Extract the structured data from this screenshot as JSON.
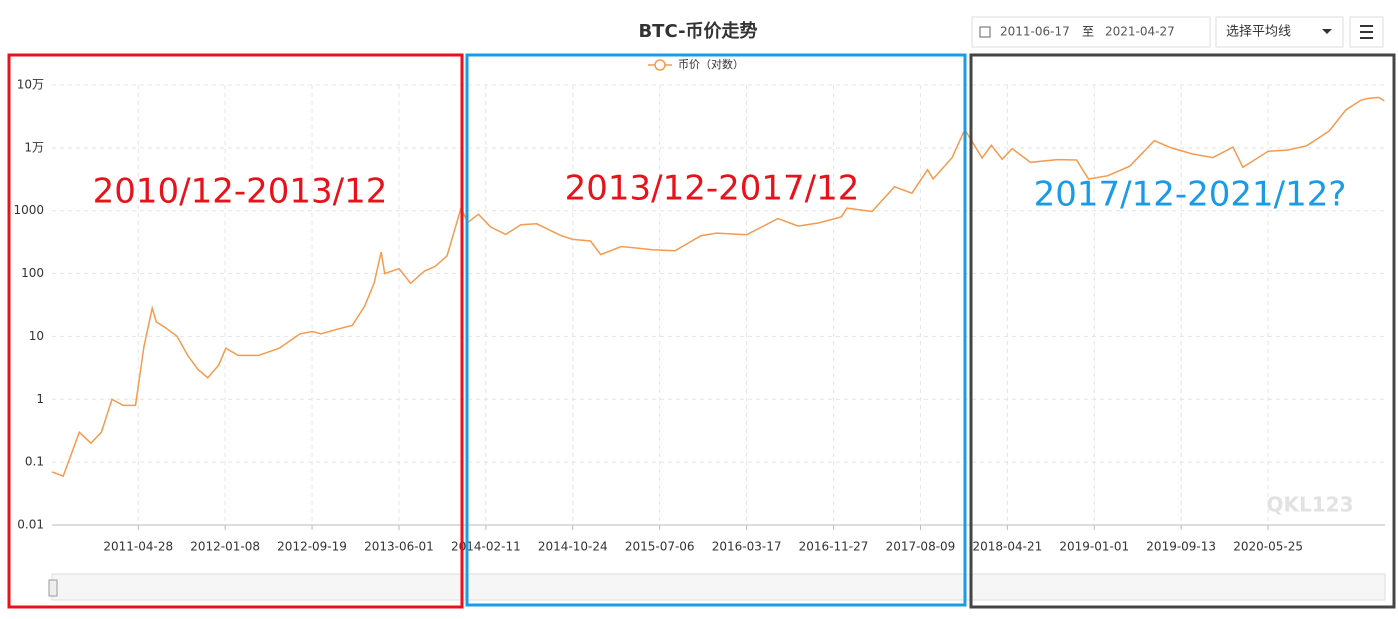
{
  "toolbar": {
    "start_date": "2011-06-17",
    "to": "至",
    "end_date": "2021-04-27",
    "ma_select": "选择平均线"
  },
  "chart_data": {
    "type": "line",
    "title": "BTC-币价走势",
    "log_scale": true,
    "grid": true,
    "legend": "top",
    "watermark": "QKL123",
    "x": [
      "2010-08-18",
      "2010-09-20",
      "2010-10-05",
      "2010-11-06",
      "2010-12-10",
      "2011-01-10",
      "2011-02-10",
      "2011-03-15",
      "2011-04-20",
      "2011-05-15",
      "2011-06-08",
      "2011-06-20",
      "2011-07-15",
      "2011-08-20",
      "2011-09-20",
      "2011-10-20",
      "2011-11-18",
      "2011-12-20",
      "2012-01-10",
      "2012-02-15",
      "2012-04-15",
      "2012-06-15",
      "2012-08-15",
      "2012-09-20",
      "2012-10-15",
      "2012-12-01",
      "2013-01-15",
      "2013-02-20",
      "2013-03-20",
      "2013-04-10",
      "2013-04-20",
      "2013-06-01",
      "2013-07-05",
      "2013-08-15",
      "2013-09-15",
      "2013-10-20",
      "2013-11-30",
      "2013-12-20",
      "2014-01-20",
      "2014-02-25",
      "2014-04-10",
      "2014-05-25",
      "2014-07-10",
      "2014-09-20",
      "2014-10-24",
      "2014-12-15",
      "2015-01-14",
      "2015-03-15",
      "2015-06-15",
      "2015-08-20",
      "2015-11-04",
      "2015-12-20",
      "2016-03-17",
      "2016-06-17",
      "2016-08-15",
      "2016-10-15",
      "2016-12-20",
      "2017-01-05",
      "2017-03-20",
      "2017-05-25",
      "2017-07-15",
      "2017-08-30",
      "2017-09-15",
      "2017-11-10",
      "2017-12-17",
      "2018-02-06",
      "2018-03-05",
      "2018-04-06",
      "2018-05-05",
      "2018-06-28",
      "2018-09-15",
      "2018-11-10",
      "2018-12-15",
      "2019-02-10",
      "2019-04-15",
      "2019-06-26",
      "2019-08-15",
      "2019-10-15",
      "2019-12-15",
      "2020-02-12",
      "2020-03-12",
      "2020-05-25",
      "2020-07-20",
      "2020-09-15",
      "2020-11-20",
      "2021-01-08",
      "2021-02-21",
      "2021-03-13",
      "2021-04-14",
      "2021-05-01"
    ],
    "series": [
      {
        "name": "币价（对数）",
        "color": "#f59a4e",
        "values": [
          0.07,
          0.06,
          0.1,
          0.3,
          0.2,
          0.3,
          1.0,
          0.8,
          0.8,
          7,
          28,
          17,
          14,
          10,
          5,
          3,
          2.2,
          3.5,
          6.5,
          5,
          5,
          6.5,
          11,
          12,
          11,
          13,
          15,
          30,
          70,
          220,
          100,
          120,
          70,
          110,
          130,
          190,
          1100,
          650,
          880,
          550,
          420,
          600,
          620,
          400,
          350,
          330,
          200,
          270,
          240,
          230,
          400,
          440,
          415,
          750,
          570,
          640,
          800,
          1100,
          970,
          2400,
          1900,
          4500,
          3200,
          7000,
          19500,
          6900,
          11000,
          6600,
          9700,
          5900,
          6500,
          6400,
          3200,
          3600,
          5100,
          13000,
          10000,
          8000,
          7000,
          10300,
          4900,
          8800,
          9200,
          10800,
          18500,
          40000,
          57000,
          61000,
          63500,
          56000
        ]
      }
    ],
    "xlim": [
      "2010-08-18",
      "2021-05-03"
    ],
    "xticks": [
      "2011-04-28",
      "2012-01-08",
      "2012-09-19",
      "2013-06-01",
      "2014-02-11",
      "2014-10-24",
      "2015-07-06",
      "2016-03-17",
      "2016-11-27",
      "2017-08-09",
      "2018-04-21",
      "2019-01-01",
      "2019-09-13",
      "2020-05-25"
    ],
    "ylim": [
      0.01,
      100000
    ],
    "yticks": [
      0.01,
      0.1,
      1,
      10,
      100,
      1000,
      {
        "value": 10000,
        "label": "1万"
      },
      {
        "value": 100000,
        "label": "10万"
      }
    ],
    "annotations": [
      {
        "text": "2010/12-2013/12",
        "color": "#e8121a",
        "box_color": "#e8121a"
      },
      {
        "text": "2013/12-2017/12",
        "color": "#e8121a",
        "box_color": "#1a9be8"
      },
      {
        "text": "2017/12-2021/12?",
        "color": "#1a9be8",
        "box_color": "#444444"
      }
    ]
  }
}
